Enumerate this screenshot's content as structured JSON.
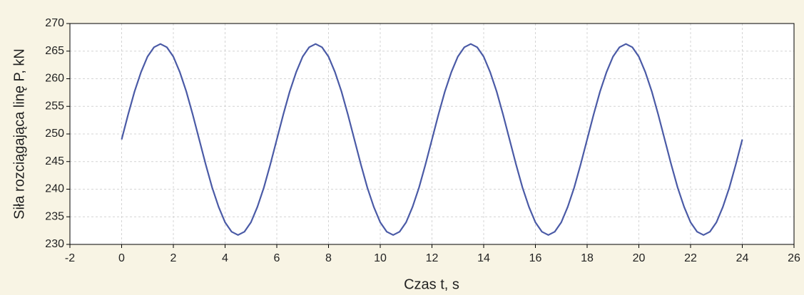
{
  "chart_data": {
    "type": "line",
    "xlabel": "Czas t, s",
    "ylabel": "Siła rozciągająca linę P, kN",
    "x": [
      0,
      0.25,
      0.5,
      0.75,
      1,
      1.25,
      1.5,
      1.75,
      2,
      2.25,
      2.5,
      2.75,
      3,
      3.25,
      3.5,
      3.75,
      4,
      4.25,
      4.5,
      4.75,
      5,
      5.25,
      5.5,
      5.75,
      6,
      6.25,
      6.5,
      6.75,
      7,
      7.25,
      7.5,
      7.75,
      8,
      8.25,
      8.5,
      8.75,
      9,
      9.25,
      9.5,
      9.75,
      10,
      10.25,
      10.5,
      10.75,
      11,
      11.25,
      11.5,
      11.75,
      12,
      12.25,
      12.5,
      12.75,
      13,
      13.25,
      13.5,
      13.75,
      14,
      14.25,
      14.5,
      14.75,
      15,
      15.25,
      15.5,
      15.75,
      16,
      16.25,
      16.5,
      16.75,
      17,
      17.25,
      17.5,
      17.75,
      18,
      18.25,
      18.5,
      18.75,
      19,
      19.25,
      19.5,
      19.75,
      20,
      20.25,
      20.5,
      20.75,
      21,
      21.25,
      21.5,
      21.75,
      22,
      22.25,
      22.5,
      22.75,
      23,
      23.25,
      23.5,
      23.75,
      24
    ],
    "series": [
      {
        "name": "P",
        "color": "#4a5aa6",
        "values": [
          249,
          253.5,
          257.7,
          261.2,
          264,
          265.7,
          266.3,
          265.7,
          264,
          261.2,
          257.7,
          253.5,
          249,
          244.5,
          240.3,
          236.8,
          234,
          232.3,
          231.7,
          232.3,
          234,
          236.8,
          240.3,
          244.5,
          249,
          253.5,
          257.7,
          261.2,
          264,
          265.7,
          266.3,
          265.7,
          264,
          261.2,
          257.7,
          253.5,
          249,
          244.5,
          240.3,
          236.8,
          234,
          232.3,
          231.7,
          232.3,
          234,
          236.8,
          240.3,
          244.5,
          249,
          253.5,
          257.7,
          261.2,
          264,
          265.7,
          266.3,
          265.7,
          264,
          261.2,
          257.7,
          253.5,
          249,
          244.5,
          240.3,
          236.8,
          234,
          232.3,
          231.7,
          232.3,
          234,
          236.8,
          240.3,
          244.5,
          249,
          253.5,
          257.7,
          261.2,
          264,
          265.7,
          266.3,
          265.7,
          264,
          261.2,
          257.7,
          253.5,
          249,
          244.5,
          240.3,
          236.8,
          234,
          232.3,
          231.7,
          232.3,
          234,
          236.8,
          240.3,
          244.5,
          249
        ]
      }
    ],
    "xlim": [
      -2,
      26
    ],
    "xticks": [
      -2,
      0,
      2,
      4,
      6,
      8,
      10,
      12,
      14,
      16,
      18,
      20,
      22,
      24,
      26
    ],
    "ylim": [
      230,
      270
    ],
    "yticks": [
      230,
      235,
      240,
      245,
      250,
      255,
      260,
      265,
      270
    ],
    "grid": true
  }
}
